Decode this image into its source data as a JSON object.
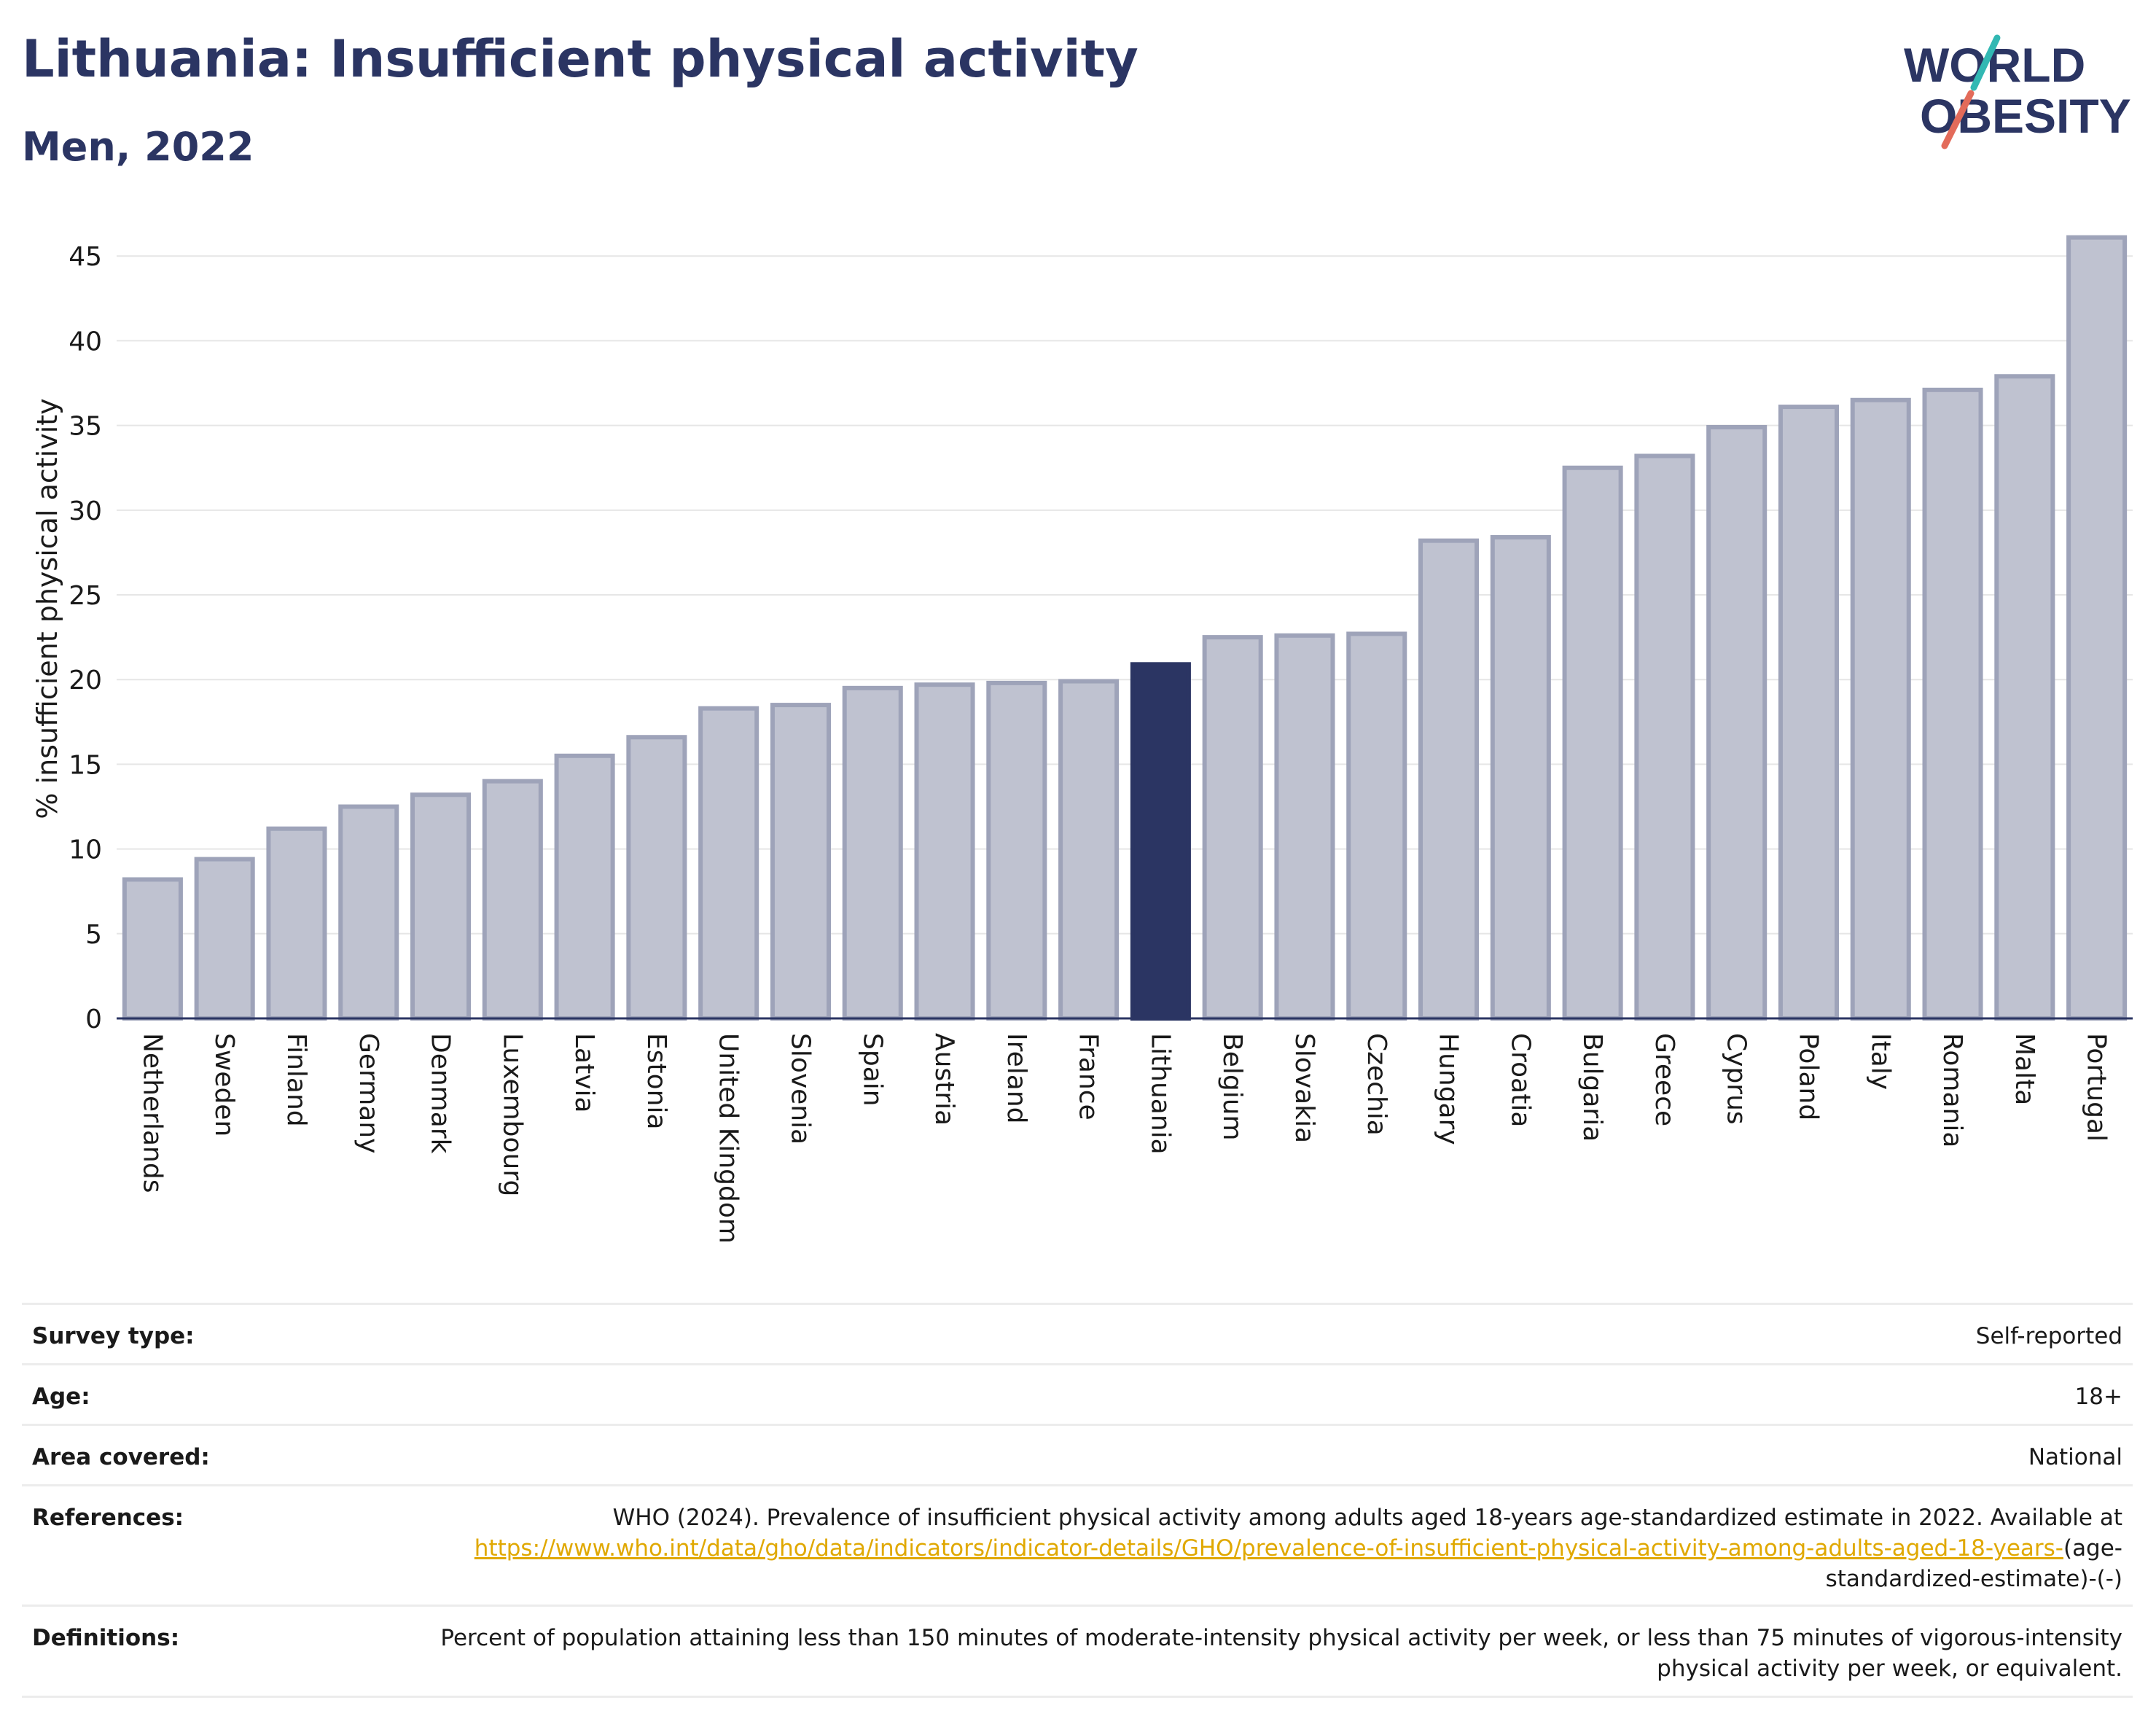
{
  "title": "Lithuania: Insufficient physical activity",
  "subtitle": "Men, 2022",
  "logo": {
    "line1": "WORLD",
    "line2": "OBESITY"
  },
  "colors": {
    "highlight": "#2b3563",
    "bar_fill": "#bfc2d0",
    "bar_stroke": "#9ea3b9",
    "title": "#2b3563",
    "link": "#e0a800"
  },
  "chart_data": {
    "type": "bar",
    "title": "Lithuania: Insufficient physical activity",
    "subtitle": "Men, 2022",
    "xlabel": "",
    "ylabel": "% insufficient physical activity",
    "ylim": [
      0,
      46
    ],
    "yticks": [
      0,
      5,
      10,
      15,
      20,
      25,
      30,
      35,
      40,
      45
    ],
    "grid": true,
    "highlight": "Lithuania",
    "categories": [
      "Netherlands",
      "Sweden",
      "Finland",
      "Germany",
      "Denmark",
      "Luxembourg",
      "Latvia",
      "Estonia",
      "United Kingdom",
      "Slovenia",
      "Spain",
      "Austria",
      "Ireland",
      "France",
      "Lithuania",
      "Belgium",
      "Slovakia",
      "Czechia",
      "Hungary",
      "Croatia",
      "Bulgaria",
      "Greece",
      "Cyprus",
      "Poland",
      "Italy",
      "Romania",
      "Malta",
      "Portugal"
    ],
    "values": [
      8.2,
      9.4,
      11.2,
      12.5,
      13.2,
      14.0,
      15.5,
      16.6,
      18.3,
      18.5,
      19.5,
      19.7,
      19.8,
      19.9,
      20.9,
      22.5,
      22.6,
      22.7,
      28.2,
      28.4,
      32.5,
      33.2,
      34.9,
      36.1,
      36.5,
      37.1,
      37.9,
      46.1
    ]
  },
  "info": {
    "survey_type": {
      "label": "Survey type:",
      "value": "Self-reported"
    },
    "age": {
      "label": "Age:",
      "value": "18+"
    },
    "area": {
      "label": "Area covered:",
      "value": "National"
    },
    "references": {
      "label": "References:",
      "text": "WHO (2024). Prevalence of insufficient physical activity among adults aged 18-years age-standardized estimate in 2022. Available at",
      "link": "https://www.who.int/data/gho/data/indicators/indicator-details/GHO/prevalence-of-insufficient-physical-activity-among-adults-aged-18-years-",
      "suffix": "(age-standardized-estimate)-(-)"
    },
    "definitions": {
      "label": "Definitions:",
      "value": "Percent of population attaining less than 150 minutes of moderate-intensity physical activity per week, or less than 75 minutes of vigorous-intensity physical activity per week, or equivalent."
    }
  }
}
